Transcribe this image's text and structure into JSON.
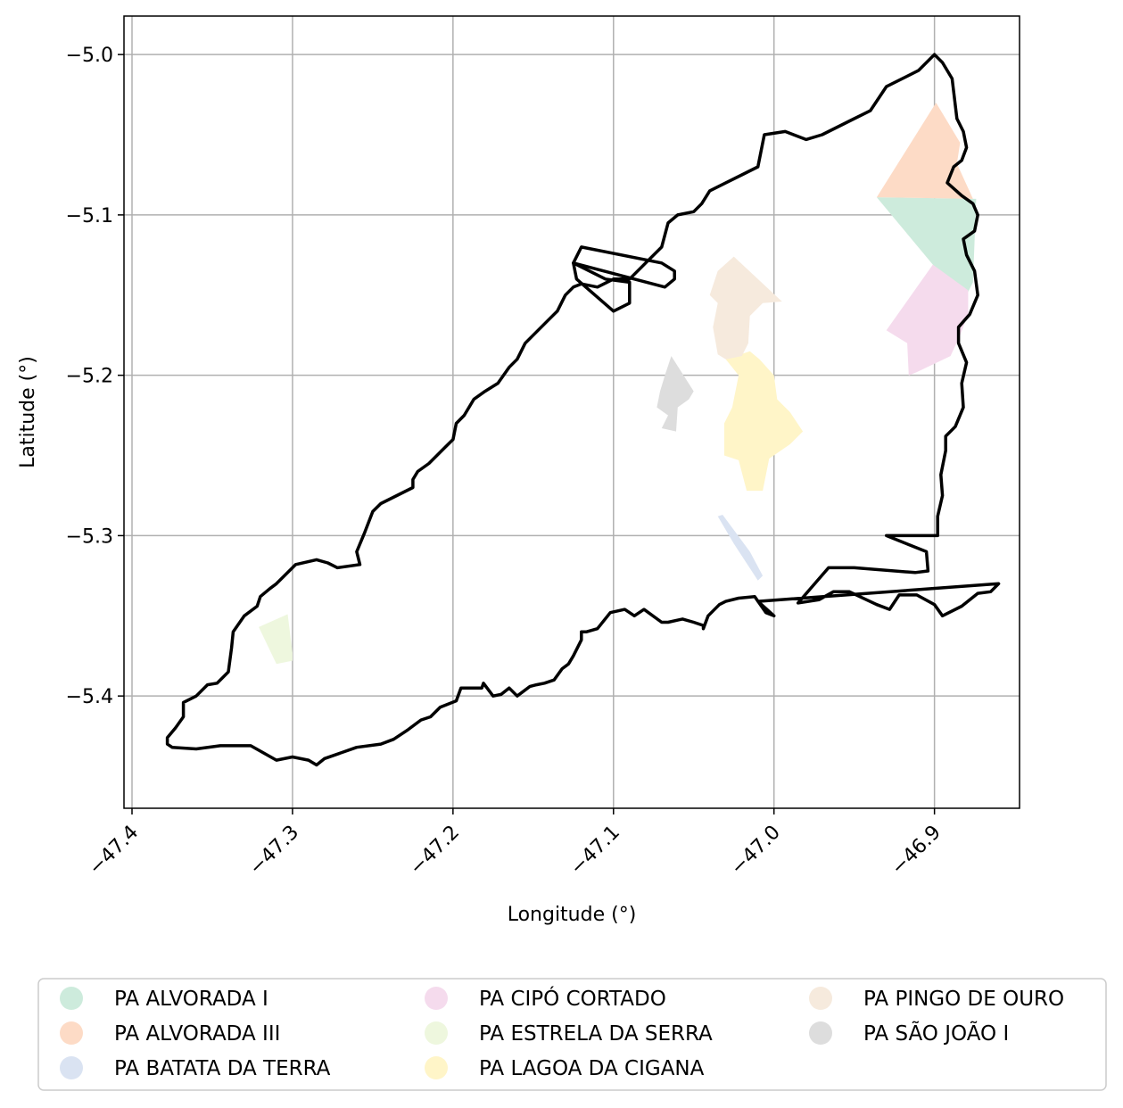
{
  "chart_data": {
    "type": "map",
    "xlabel": "Longitude (°)",
    "ylabel": "Latitude (°)",
    "xlim": [
      -47.405,
      -46.847
    ],
    "ylim": [
      -5.47,
      -4.976
    ],
    "xticks": [
      {
        "value": -47.4,
        "label": "−47.4"
      },
      {
        "value": -47.3,
        "label": "−47.3"
      },
      {
        "value": -47.2,
        "label": "−47.2"
      },
      {
        "value": -47.1,
        "label": "−47.1"
      },
      {
        "value": -47.0,
        "label": "−47.0"
      },
      {
        "value": -46.9,
        "label": "−46.9"
      }
    ],
    "yticks": [
      {
        "value": -5.0,
        "label": "−5.0"
      },
      {
        "value": -5.1,
        "label": "−5.1"
      },
      {
        "value": -5.2,
        "label": "−5.2"
      },
      {
        "value": -5.3,
        "label": "−5.3"
      },
      {
        "value": -5.4,
        "label": "−5.4"
      }
    ],
    "grid": true,
    "legend_position": "bottom",
    "boundary": [
      [
        -46.889,
        -5.015
      ],
      [
        -46.886,
        -5.04
      ],
      [
        -46.882,
        -5.048
      ],
      [
        -46.88,
        -5.058
      ],
      [
        -46.883,
        -5.066
      ],
      [
        -46.888,
        -5.07
      ],
      [
        -46.892,
        -5.08
      ],
      [
        -46.883,
        -5.088
      ],
      [
        -46.876,
        -5.093
      ],
      [
        -46.873,
        -5.1
      ],
      [
        -46.875,
        -5.11
      ],
      [
        -46.882,
        -5.115
      ],
      [
        -46.88,
        -5.125
      ],
      [
        -46.875,
        -5.135
      ],
      [
        -46.873,
        -5.15
      ],
      [
        -46.878,
        -5.162
      ],
      [
        -46.885,
        -5.17
      ],
      [
        -46.885,
        -5.18
      ],
      [
        -46.88,
        -5.192
      ],
      [
        -46.883,
        -5.205
      ],
      [
        -46.882,
        -5.22
      ],
      [
        -46.887,
        -5.232
      ],
      [
        -46.893,
        -5.238
      ],
      [
        -46.893,
        -5.247
      ],
      [
        -46.896,
        -5.262
      ],
      [
        -46.895,
        -5.275
      ],
      [
        -46.898,
        -5.288
      ],
      [
        -46.898,
        -5.3
      ],
      [
        -46.93,
        -5.3
      ],
      [
        -46.905,
        -5.31
      ],
      [
        -46.904,
        -5.322
      ],
      [
        -46.912,
        -5.323
      ],
      [
        -46.95,
        -5.32
      ],
      [
        -46.966,
        -5.32
      ],
      [
        -46.985,
        -5.342
      ],
      [
        -46.972,
        -5.34
      ],
      [
        -46.963,
        -5.335
      ],
      [
        -46.953,
        -5.335
      ],
      [
        -46.936,
        -5.343
      ],
      [
        -46.928,
        -5.346
      ],
      [
        -46.922,
        -5.337
      ],
      [
        -46.911,
        -5.337
      ],
      [
        -46.9,
        -5.343
      ],
      [
        -46.895,
        -5.35
      ],
      [
        -46.883,
        -5.344
      ],
      [
        -46.873,
        -5.336
      ],
      [
        -46.865,
        -5.335
      ],
      [
        -46.86,
        -5.33
      ],
      [
        -47.01,
        -5.341
      ],
      [
        -47.0,
        -5.35
      ],
      [
        -47.005,
        -5.348
      ],
      [
        -47.012,
        -5.338
      ],
      [
        -47.022,
        -5.339
      ],
      [
        -47.03,
        -5.341
      ],
      [
        -47.034,
        -5.343
      ],
      [
        -47.041,
        -5.35
      ],
      [
        -47.044,
        -5.358
      ],
      [
        -47.044,
        -5.356
      ],
      [
        -47.05,
        -5.354
      ],
      [
        -47.057,
        -5.352
      ],
      [
        -47.066,
        -5.354
      ],
      [
        -47.07,
        -5.354
      ],
      [
        -47.081,
        -5.346
      ],
      [
        -47.087,
        -5.35
      ],
      [
        -47.093,
        -5.346
      ],
      [
        -47.102,
        -5.348
      ],
      [
        -47.11,
        -5.358
      ],
      [
        -47.117,
        -5.36
      ],
      [
        -47.12,
        -5.36
      ],
      [
        -47.12,
        -5.365
      ],
      [
        -47.125,
        -5.375
      ],
      [
        -47.128,
        -5.38
      ],
      [
        -47.132,
        -5.383
      ],
      [
        -47.137,
        -5.39
      ],
      [
        -47.143,
        -5.392
      ],
      [
        -47.148,
        -5.393
      ],
      [
        -47.152,
        -5.394
      ],
      [
        -47.16,
        -5.4
      ],
      [
        -47.165,
        -5.395
      ],
      [
        -47.17,
        -5.399
      ],
      [
        -47.175,
        -5.4
      ],
      [
        -47.181,
        -5.392
      ],
      [
        -47.182,
        -5.395
      ],
      [
        -47.19,
        -5.395
      ],
      [
        -47.195,
        -5.395
      ],
      [
        -47.198,
        -5.403
      ],
      [
        -47.208,
        -5.407
      ],
      [
        -47.214,
        -5.413
      ],
      [
        -47.22,
        -5.415
      ],
      [
        -47.228,
        -5.421
      ],
      [
        -47.237,
        -5.427
      ],
      [
        -47.245,
        -5.43
      ],
      [
        -47.26,
        -5.432
      ],
      [
        -47.28,
        -5.439
      ],
      [
        -47.285,
        -5.443
      ],
      [
        -47.29,
        -5.44
      ],
      [
        -47.3,
        -5.438
      ],
      [
        -47.31,
        -5.44
      ],
      [
        -47.326,
        -5.431
      ],
      [
        -47.345,
        -5.431
      ],
      [
        -47.36,
        -5.433
      ],
      [
        -47.375,
        -5.432
      ],
      [
        -47.378,
        -5.43
      ],
      [
        -47.378,
        -5.426
      ],
      [
        -47.373,
        -5.42
      ],
      [
        -47.368,
        -5.413
      ],
      [
        -47.368,
        -5.404
      ],
      [
        -47.36,
        -5.4
      ],
      [
        -47.353,
        -5.393
      ],
      [
        -47.347,
        -5.392
      ],
      [
        -47.34,
        -5.385
      ],
      [
        -47.338,
        -5.37
      ],
      [
        -47.337,
        -5.36
      ],
      [
        -47.33,
        -5.35
      ],
      [
        -47.322,
        -5.344
      ],
      [
        -47.32,
        -5.338
      ],
      [
        -47.314,
        -5.333
      ],
      [
        -47.31,
        -5.33
      ],
      [
        -47.298,
        -5.318
      ],
      [
        -47.285,
        -5.315
      ],
      [
        -47.278,
        -5.317
      ],
      [
        -47.272,
        -5.32
      ],
      [
        -47.258,
        -5.318
      ],
      [
        -47.26,
        -5.31
      ],
      [
        -47.255,
        -5.298
      ],
      [
        -47.25,
        -5.285
      ],
      [
        -47.245,
        -5.28
      ],
      [
        -47.235,
        -5.275
      ],
      [
        -47.225,
        -5.27
      ],
      [
        -47.225,
        -5.265
      ],
      [
        -47.222,
        -5.26
      ],
      [
        -47.215,
        -5.255
      ],
      [
        -47.21,
        -5.25
      ],
      [
        -47.205,
        -5.245
      ],
      [
        -47.2,
        -5.24
      ],
      [
        -47.198,
        -5.23
      ],
      [
        -47.193,
        -5.225
      ],
      [
        -47.187,
        -5.215
      ],
      [
        -47.18,
        -5.21
      ],
      [
        -47.172,
        -5.205
      ],
      [
        -47.165,
        -5.195
      ],
      [
        -47.16,
        -5.19
      ],
      [
        -47.155,
        -5.18
      ],
      [
        -47.15,
        -5.175
      ],
      [
        -47.14,
        -5.165
      ],
      [
        -47.135,
        -5.16
      ],
      [
        -47.13,
        -5.15
      ],
      [
        -47.125,
        -5.145
      ],
      [
        -47.12,
        -5.143
      ],
      [
        -47.11,
        -5.145
      ],
      [
        -47.1,
        -5.14
      ],
      [
        -47.09,
        -5.14
      ],
      [
        -47.08,
        -5.13
      ],
      [
        -47.07,
        -5.12
      ],
      [
        -47.066,
        -5.105
      ],
      [
        -47.06,
        -5.1
      ],
      [
        -47.05,
        -5.098
      ],
      [
        -47.045,
        -5.093
      ],
      [
        -47.04,
        -5.085
      ],
      [
        -47.03,
        -5.08
      ],
      [
        -47.02,
        -5.075
      ],
      [
        -47.01,
        -5.07
      ],
      [
        -47.006,
        -5.05
      ],
      [
        -46.993,
        -5.048
      ],
      [
        -46.98,
        -5.053
      ],
      [
        -46.97,
        -5.05
      ],
      [
        -46.96,
        -5.045
      ],
      [
        -46.95,
        -5.04
      ],
      [
        -46.94,
        -5.035
      ],
      [
        -46.93,
        -5.02
      ],
      [
        -46.91,
        -5.01
      ],
      [
        -46.9,
        -5.0
      ],
      [
        -46.895,
        -5.005
      ]
    ],
    "outline_hole": [
      [
        -47.062,
        -5.135
      ],
      [
        -47.07,
        -5.13
      ],
      [
        -47.12,
        -5.12
      ],
      [
        -47.125,
        -5.13
      ],
      [
        -47.068,
        -5.145
      ],
      [
        -47.062,
        -5.14
      ]
    ],
    "outline_hole2": [
      [
        -47.09,
        -5.142
      ],
      [
        -47.105,
        -5.14
      ],
      [
        -47.125,
        -5.13
      ],
      [
        -47.123,
        -5.14
      ],
      [
        -47.1,
        -5.16
      ],
      [
        -47.09,
        -5.155
      ]
    ],
    "series": [
      {
        "name": "PA ALVORADA I",
        "color": "#cdebdc",
        "polygon": [
          [
            -46.936,
            -5.089
          ],
          [
            -46.874,
            -5.09
          ],
          [
            -46.876,
            -5.142
          ],
          [
            -46.881,
            -5.152
          ],
          [
            -46.901,
            -5.131
          ]
        ]
      },
      {
        "name": "PA ALVORADA III",
        "color": "#fddbc6",
        "polygon": [
          [
            -46.936,
            -5.089
          ],
          [
            -46.899,
            -5.03
          ],
          [
            -46.884,
            -5.055
          ],
          [
            -46.886,
            -5.068
          ],
          [
            -46.876,
            -5.09
          ]
        ]
      },
      {
        "name": "PA BATATA DA TERRA",
        "color": "#dae3f2",
        "polygon": [
          [
            -47.035,
            -5.288
          ],
          [
            -47.032,
            -5.287
          ],
          [
            -47.015,
            -5.31
          ],
          [
            -47.007,
            -5.325
          ],
          [
            -47.01,
            -5.328
          ],
          [
            -47.025,
            -5.305
          ]
        ]
      },
      {
        "name": "PA CIPÓ CORTADO",
        "color": "#f5dbed",
        "polygon": [
          [
            -46.901,
            -5.131
          ],
          [
            -46.879,
            -5.147
          ],
          [
            -46.879,
            -5.162
          ],
          [
            -46.884,
            -5.175
          ],
          [
            -46.89,
            -5.188
          ],
          [
            -46.911,
            -5.198
          ],
          [
            -46.916,
            -5.2
          ],
          [
            -46.917,
            -5.18
          ],
          [
            -46.93,
            -5.172
          ]
        ]
      },
      {
        "name": "PA ESTRELA DA SERRA",
        "color": "#eef7de",
        "polygon": [
          [
            -47.321,
            -5.357
          ],
          [
            -47.303,
            -5.349
          ],
          [
            -47.3,
            -5.373
          ],
          [
            -47.3,
            -5.378
          ],
          [
            -47.31,
            -5.38
          ]
        ]
      },
      {
        "name": "PA LAGOA DA CIGANA",
        "color": "#fff5c8",
        "polygon": [
          [
            -47.015,
            -5.185
          ],
          [
            -47.009,
            -5.19
          ],
          [
            -47.0,
            -5.2
          ],
          [
            -46.998,
            -5.215
          ],
          [
            -46.99,
            -5.223
          ],
          [
            -46.982,
            -5.235
          ],
          [
            -46.99,
            -5.243
          ],
          [
            -47.003,
            -5.252
          ],
          [
            -47.007,
            -5.272
          ],
          [
            -47.017,
            -5.272
          ],
          [
            -47.022,
            -5.253
          ],
          [
            -47.031,
            -5.25
          ],
          [
            -47.031,
            -5.23
          ],
          [
            -47.026,
            -5.22
          ],
          [
            -47.022,
            -5.2
          ],
          [
            -47.03,
            -5.19
          ]
        ]
      },
      {
        "name": "PA PINGO DE OURO",
        "color": "#f6eadd",
        "polygon": [
          [
            -47.025,
            -5.126
          ],
          [
            -46.995,
            -5.154
          ],
          [
            -47.007,
            -5.155
          ],
          [
            -47.015,
            -5.163
          ],
          [
            -47.016,
            -5.18
          ],
          [
            -47.02,
            -5.188
          ],
          [
            -47.03,
            -5.19
          ],
          [
            -47.035,
            -5.187
          ],
          [
            -47.038,
            -5.17
          ],
          [
            -47.035,
            -5.155
          ],
          [
            -47.04,
            -5.15
          ],
          [
            -47.035,
            -5.135
          ]
        ]
      },
      {
        "name": "PA SÃO JOÃO I",
        "color": "#dddddd",
        "polygon": [
          [
            -47.064,
            -5.188
          ],
          [
            -47.05,
            -5.21
          ],
          [
            -47.053,
            -5.215
          ],
          [
            -47.06,
            -5.22
          ],
          [
            -47.061,
            -5.235
          ],
          [
            -47.07,
            -5.233
          ],
          [
            -47.066,
            -5.225
          ],
          [
            -47.073,
            -5.22
          ],
          [
            -47.071,
            -5.21
          ],
          [
            -47.068,
            -5.2
          ]
        ]
      }
    ]
  }
}
